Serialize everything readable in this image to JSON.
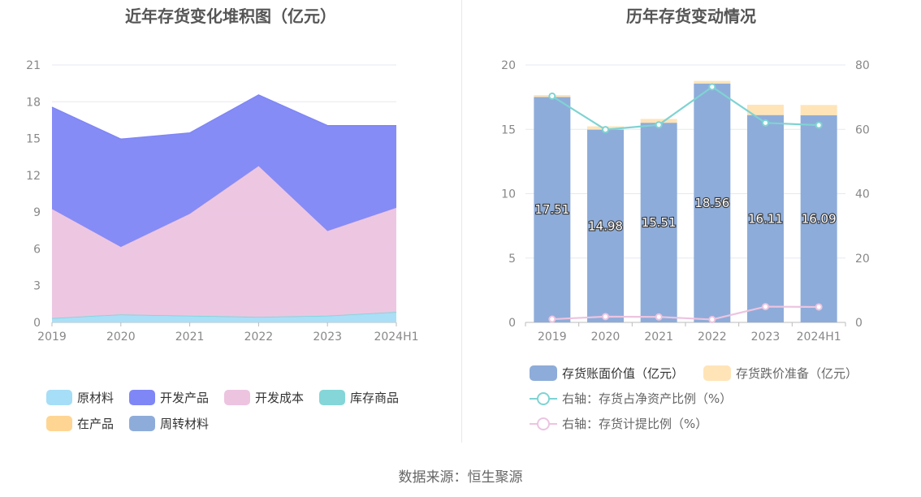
{
  "footer": {
    "source": "数据来源：恒生聚源"
  },
  "colors": {
    "raw": "#a6ddf7",
    "dev_product": "#7f86f5",
    "dev_cost": "#ecc4e0",
    "stock": "#84d6d8",
    "wip": "#ffd594",
    "turnover": "#8eacd9",
    "bar_main": "#8eacd9",
    "bar_reserve": "#ffe4b8",
    "line_ratio": "#7fd3d3",
    "line_provision": "#ecc4e0"
  },
  "chart_data": [
    {
      "type": "area",
      "title": "近年存货变化堆积图（亿元）",
      "categories": [
        "2019",
        "2020",
        "2021",
        "2022",
        "2023",
        "2024H1"
      ],
      "ylim": [
        0,
        21
      ],
      "yticks": [
        "0",
        "3",
        "6",
        "9",
        "12",
        "15",
        "18",
        "21"
      ],
      "grid": true,
      "legend_position": "bottom",
      "series": [
        {
          "name": "原材料",
          "values": [
            0.3,
            0.6,
            0.5,
            0.4,
            0.5,
            0.8
          ]
        },
        {
          "name": "库存商品",
          "values": [
            0.05,
            0.05,
            0.05,
            0.05,
            0.05,
            0.05
          ]
        },
        {
          "name": "开发成本",
          "values": [
            8.9,
            5.5,
            8.3,
            12.3,
            6.9,
            8.5
          ]
        },
        {
          "name": "开发产品",
          "values": [
            8.3,
            8.8,
            6.6,
            5.8,
            8.6,
            6.7
          ]
        },
        {
          "name": "在产品",
          "values": [
            0,
            0,
            0,
            0,
            0,
            0
          ]
        },
        {
          "name": "周转材料",
          "values": [
            0,
            0,
            0,
            0,
            0,
            0
          ]
        }
      ],
      "legend": [
        "原材料",
        "开发产品",
        "开发成本",
        "库存商品",
        "在产品",
        "周转材料"
      ]
    },
    {
      "type": "bar",
      "title": "历年存货变动情况",
      "categories": [
        "2019",
        "2020",
        "2021",
        "2022",
        "2023",
        "2024H1"
      ],
      "ylim": [
        0,
        20
      ],
      "yticks": [
        "0",
        "5",
        "10",
        "15",
        "20"
      ],
      "y2lim": [
        0,
        80
      ],
      "y2ticks": [
        "0",
        "20",
        "40",
        "60",
        "80"
      ],
      "grid": true,
      "legend_position": "bottom",
      "series": [
        {
          "name": "存货账面价值（亿元）",
          "values": [
            17.51,
            14.98,
            15.51,
            18.56,
            16.11,
            16.09
          ],
          "labels": [
            "17.51",
            "14.98",
            "15.51",
            "18.56",
            "16.11",
            "16.09"
          ]
        },
        {
          "name": "存货跌价准备（亿元）",
          "values": [
            0.15,
            0.25,
            0.3,
            0.2,
            0.8,
            0.8
          ]
        },
        {
          "name": "右轴：存货占净资产比例（%）",
          "axis": "right",
          "values": [
            70.3,
            59.9,
            61.4,
            73.2,
            62.0,
            61.3
          ]
        },
        {
          "name": "右轴：存货计提比例（%）",
          "axis": "right",
          "values": [
            1.0,
            1.8,
            1.7,
            0.9,
            4.9,
            4.8
          ]
        }
      ]
    }
  ]
}
